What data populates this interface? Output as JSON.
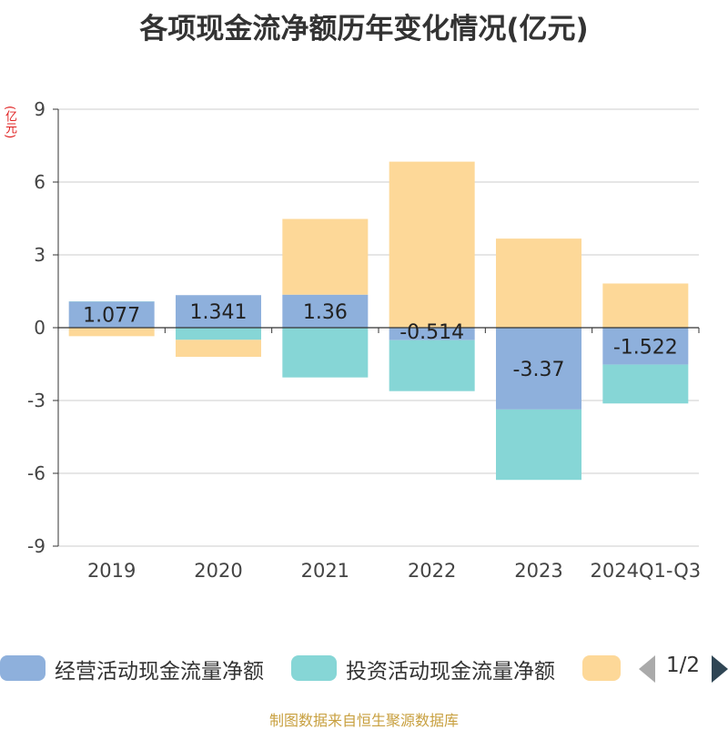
{
  "chart_data": {
    "type": "bar",
    "stacked": true,
    "title": "各项现金流净额历年变化情况(亿元)",
    "ylabel": "(亿元)",
    "ylim": [
      -9,
      9
    ],
    "yticks": [
      9,
      6,
      3,
      0,
      -3,
      -6,
      -9
    ],
    "categories": [
      "2019",
      "2020",
      "2021",
      "2022",
      "2023",
      "2024Q1-Q3"
    ],
    "series": [
      {
        "name": "经营活动现金流量净额",
        "color": "#8eb0dc",
        "values": [
          1.077,
          1.341,
          1.36,
          -0.514,
          -3.37,
          -1.522
        ],
        "labels": [
          "1.077",
          "1.341",
          "1.36",
          "-0.514",
          "-3.37",
          "-1.522"
        ]
      },
      {
        "name": "投资活动现金流量净额",
        "color": "#86d6d6",
        "values": [
          0.01,
          -0.5,
          -2.05,
          -2.1,
          -2.9,
          -1.6
        ]
      },
      {
        "name": "",
        "color": "#fdd898",
        "values": [
          -0.35,
          -0.7,
          3.12,
          6.84,
          3.67,
          1.82
        ]
      }
    ],
    "grid": true,
    "legend_position": "bottom"
  },
  "legend": {
    "pager": "1/2"
  },
  "source": "制图数据来自恒生聚源数据库"
}
